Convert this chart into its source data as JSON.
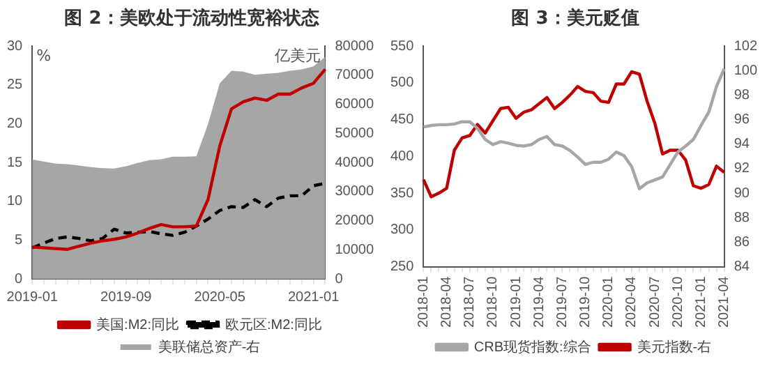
{
  "chart_data": [
    {
      "type": "line",
      "title": "图 2：美欧处于流动性宽裕状态",
      "ylabel": "%",
      "y2label": "亿美元",
      "categories": [
        "2019-01",
        null,
        null,
        null,
        null,
        null,
        null,
        null,
        "2019-09",
        null,
        null,
        null,
        null,
        null,
        null,
        null,
        "2020-05",
        null,
        null,
        null,
        null,
        null,
        null,
        null,
        "2021-01",
        null
      ],
      "series": [
        {
          "name": "美联储总资产-右",
          "type": "area",
          "axis": "y2",
          "color": "#a6a6a6",
          "values": [
            41000,
            40300,
            39600,
            39400,
            38900,
            38400,
            38000,
            37900,
            38700,
            39800,
            40800,
            41100,
            42000,
            42000,
            42100,
            53200,
            67200,
            71500,
            71200,
            70100,
            70500,
            70800,
            71500,
            72000,
            73000,
            76300
          ]
        },
        {
          "name": "美国:M2:同比",
          "color": "#c00000",
          "line_style": "solid",
          "values": [
            4.1,
            4.0,
            3.9,
            3.8,
            4.2,
            4.6,
            4.9,
            5.1,
            5.4,
            5.9,
            6.5,
            7.0,
            6.7,
            6.7,
            6.8,
            10.2,
            17.1,
            21.9,
            22.8,
            23.3,
            23.0,
            23.8,
            23.8,
            24.6,
            25.2,
            27.0
          ]
        },
        {
          "name": "欧元区:M2:同比",
          "color": "#000000",
          "line_style": "dashed",
          "values": [
            4.0,
            4.6,
            5.2,
            5.4,
            5.2,
            4.9,
            5.2,
            6.4,
            5.9,
            6.0,
            6.1,
            5.8,
            5.6,
            6.0,
            6.8,
            7.7,
            8.8,
            9.3,
            9.2,
            10.2,
            9.3,
            10.4,
            10.7,
            10.7,
            12.0,
            12.3
          ]
        }
      ],
      "ylim": [
        0,
        30
      ],
      "yticks": [
        0,
        5,
        10,
        15,
        20,
        25,
        30
      ],
      "y2lim": [
        0,
        80000
      ],
      "y2ticks": [
        0,
        10000,
        20000,
        30000,
        40000,
        50000,
        60000,
        70000,
        80000
      ],
      "grid": false,
      "legend": "bottom",
      "marker": "none"
    },
    {
      "type": "line",
      "title": "图 3：美元贬值",
      "categories": [
        "2018-01",
        null,
        null,
        "2018-04",
        null,
        null,
        "2018-07",
        null,
        null,
        "2018-10",
        null,
        null,
        "2019-01",
        null,
        null,
        "2019-04",
        null,
        null,
        "2019-07",
        null,
        null,
        "2019-10",
        null,
        null,
        "2020-01",
        null,
        null,
        "2020-04",
        null,
        null,
        "2020-07",
        null,
        null,
        "2020-10",
        null,
        null,
        "2021-01",
        null,
        null,
        "2021-04"
      ],
      "series": [
        {
          "name": "CRB现货指数:综合",
          "color": "#a6a6a6",
          "values": [
            440,
            442,
            443,
            443,
            444,
            447,
            447,
            438,
            423,
            416,
            420,
            418,
            415,
            414,
            416,
            423,
            427,
            416,
            414,
            408,
            399,
            389,
            392,
            392,
            396,
            406,
            401,
            386,
            356,
            364,
            368,
            372,
            389,
            406,
            414,
            423,
            442,
            460,
            495,
            519
          ]
        },
        {
          "name": "美元指数-右",
          "axis": "y2",
          "color": "#c00000",
          "values": [
            91.1,
            89.7,
            90.0,
            90.4,
            93.5,
            94.5,
            94.7,
            95.6,
            94.9,
            95.9,
            96.9,
            97.0,
            96.1,
            96.6,
            96.8,
            97.3,
            97.8,
            96.9,
            97.4,
            98.0,
            98.7,
            98.3,
            98.2,
            97.5,
            97.4,
            98.9,
            98.9,
            99.9,
            99.7,
            97.5,
            95.7,
            93.2,
            93.5,
            93.5,
            92.7,
            90.6,
            90.4,
            90.7,
            92.2,
            91.7
          ]
        }
      ],
      "ylim": [
        250,
        550
      ],
      "yticks": [
        250,
        300,
        350,
        400,
        450,
        500,
        550
      ],
      "y2lim": [
        84,
        102
      ],
      "y2ticks": [
        84,
        86,
        88,
        90,
        92,
        94,
        96,
        98,
        100,
        102
      ],
      "grid": false,
      "legend": "bottom",
      "marker": "none"
    }
  ]
}
